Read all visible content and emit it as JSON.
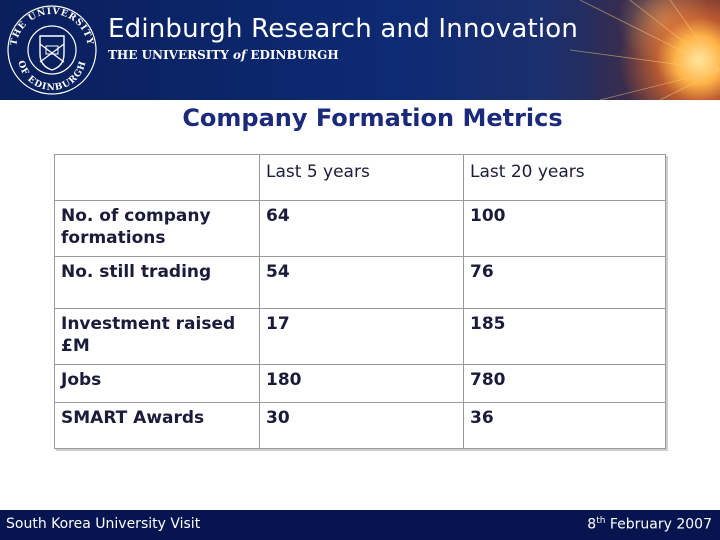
{
  "header": {
    "title": "Edinburgh Research and Innovation",
    "subtitle_prefix": "THE UNIVERSITY ",
    "subtitle_of": "of",
    "subtitle_suffix": " EDINBURGH",
    "seal_text_top": "THE UNIVERSITY",
    "seal_text_bottom": "OF EDINBURGH"
  },
  "slide": {
    "title": "Company Formation Metrics"
  },
  "table": {
    "columns": [
      "",
      "Last 5 years",
      "Last 20 years"
    ],
    "rows": [
      {
        "label": "No. of company formations",
        "last5": "64",
        "last20": "100"
      },
      {
        "label": "No. still trading",
        "last5": "54",
        "last20": "76"
      },
      {
        "label": "Investment raised £M",
        "last5": "17",
        "last20": "185"
      },
      {
        "label": "Jobs",
        "last5": "180",
        "last20": "780"
      },
      {
        "label": "SMART Awards",
        "last5": "30",
        "last20": "36"
      }
    ]
  },
  "footer": {
    "left": "South Korea University Visit",
    "date_day": "8",
    "date_sup": "th",
    "date_rest": " February 2007"
  },
  "colors": {
    "banner": "#0d2a74",
    "footer": "#06154f",
    "title": "#1b2a7a"
  }
}
